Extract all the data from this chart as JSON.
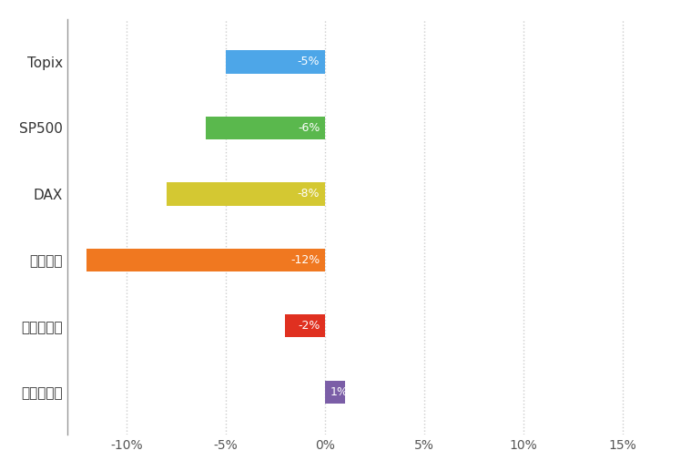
{
  "categories": [
    "Topix",
    "SP500",
    "DAX",
    "上海総合",
    "米ドル／円",
    "ユーロ／円"
  ],
  "values": [
    -5,
    -6,
    -8,
    -12,
    -2,
    1
  ],
  "bar_colors": [
    "#4da6e8",
    "#5ab84d",
    "#d4c832",
    "#f07820",
    "#e03020",
    "#7b5ea7"
  ],
  "bar_labels": [
    "-5%",
    "-6%",
    "-8%",
    "-12%",
    "-2%",
    "1%"
  ],
  "xlim": [
    -13,
    17
  ],
  "xticks": [
    -10,
    -5,
    0,
    5,
    10,
    15
  ],
  "xtick_labels": [
    "-10%",
    "-5%",
    "0%",
    "5%",
    "10%",
    "15%"
  ],
  "background_color": "#ffffff",
  "grid_color": "#cccccc",
  "label_fontsize": 11,
  "tick_fontsize": 10,
  "bar_label_fontsize": 9,
  "bar_height": 0.35,
  "spine_color": "#aaaaaa"
}
